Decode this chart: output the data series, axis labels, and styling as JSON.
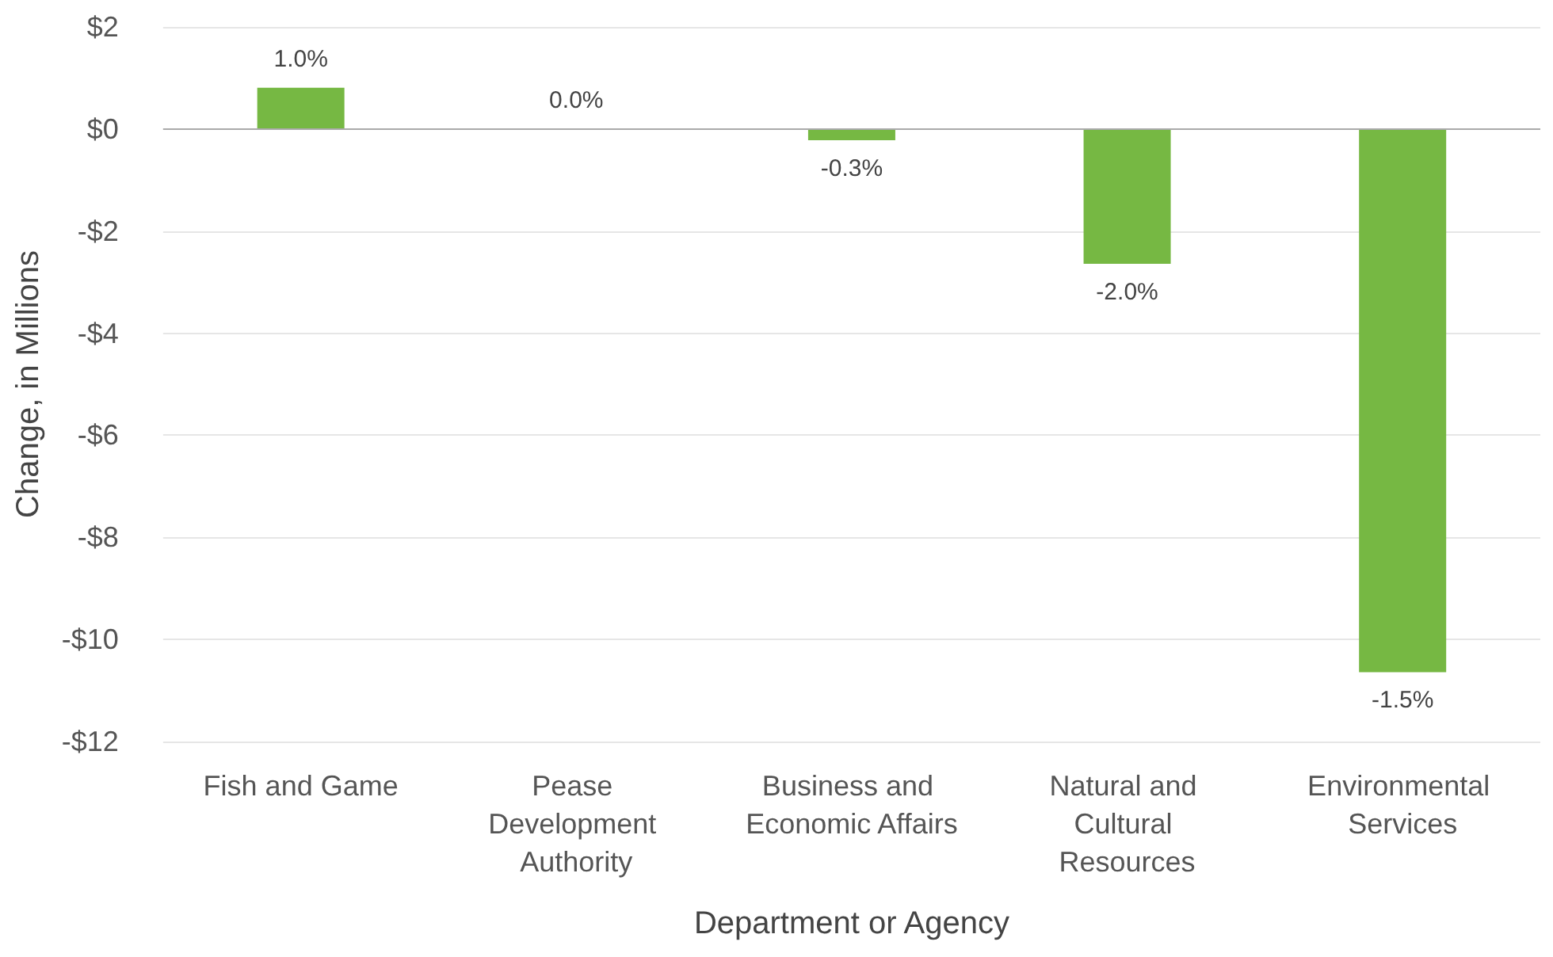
{
  "chart_data": {
    "type": "bar",
    "xlabel": "Department or Agency",
    "ylabel": "Change, in Millions",
    "categories": [
      "Fish and Game",
      "Pease Development Authority",
      "Business and Economic Affairs",
      "Natural and Cultural Resources",
      "Environmental Services"
    ],
    "values": [
      0.81,
      0,
      -0.22,
      -2.64,
      -10.64
    ],
    "annotations": [
      {
        "text": "1.0%",
        "x": "Fish and Game",
        "y": 0.81
      },
      {
        "text": "0.0%",
        "x": "Pease Development Authority",
        "y": 0
      },
      {
        "text": "-0.3%",
        "x": "Business and Economic Affairs",
        "y": -0.22
      },
      {
        "text": "-2.0%",
        "x": "Natural and Cultural Resources",
        "y": -2.64
      },
      {
        "text": "-1.5%",
        "x": "Environmental Services",
        "y": -10.64
      }
    ],
    "color": "#76b843",
    "ylim": [
      -12,
      2
    ],
    "yticks": [
      {
        "value": -12,
        "label": "-$12"
      },
      {
        "value": -10,
        "label": "-$10"
      },
      {
        "value": -8,
        "label": "-$8"
      },
      {
        "value": -6,
        "label": "-$6"
      },
      {
        "value": -4,
        "label": "-$4"
      },
      {
        "value": -2,
        "label": "-$2"
      },
      {
        "value": 0,
        "label": "$0"
      },
      {
        "value": 2,
        "label": "$2"
      }
    ],
    "grid": "y"
  }
}
